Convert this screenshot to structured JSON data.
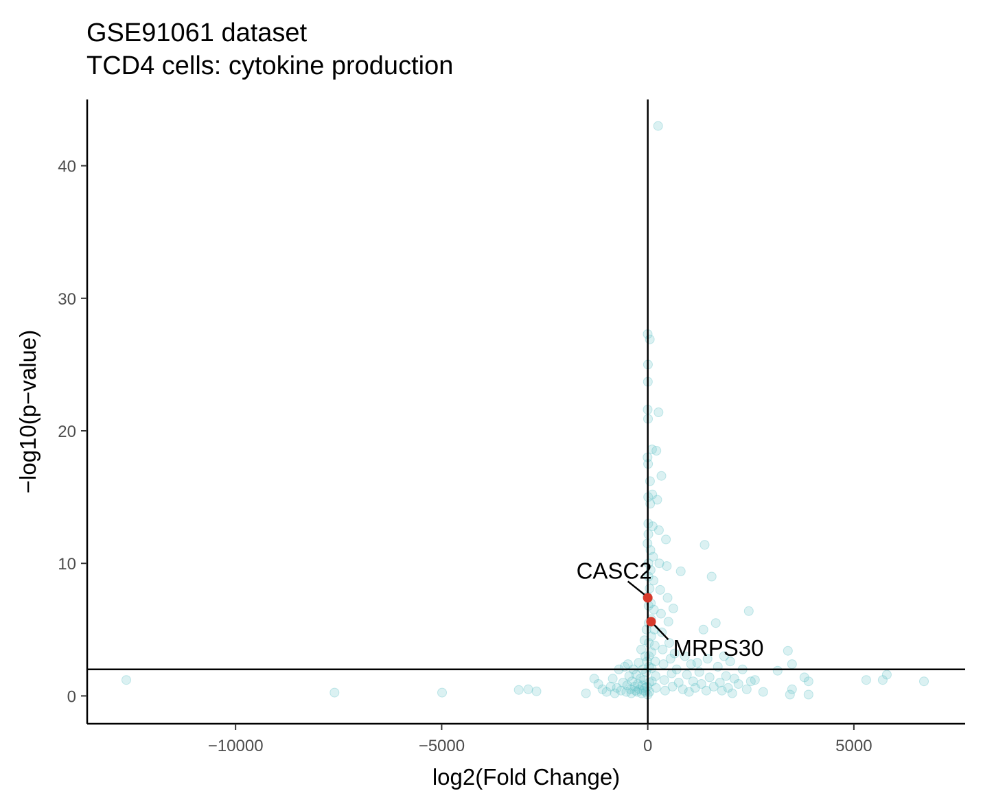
{
  "chart_data": {
    "type": "scatter",
    "title": "GSE91061 dataset",
    "subtitle": "TCD4 cells: cytokine production",
    "xlabel": "log2(Fold Change)",
    "ylabel": "−log10(p−value)",
    "xlim": [
      -13600,
      7700
    ],
    "ylim": [
      -2.1,
      45
    ],
    "x_ticks": [
      -10000,
      -5000,
      0,
      5000
    ],
    "x_tick_labels": [
      "−10000",
      "−5000",
      "0",
      "5000"
    ],
    "y_ticks": [
      0,
      10,
      20,
      30,
      40
    ],
    "y_tick_labels": [
      "0",
      "10",
      "20",
      "30",
      "40"
    ],
    "hline": 2,
    "vline": 0,
    "grid": false,
    "colors": {
      "points": "#5bbfc5",
      "highlight": "#d73a2c",
      "axis": "#000000"
    },
    "series": [
      {
        "points": [
          [
            -12650,
            1.2
          ],
          [
            -7600,
            0.25
          ],
          [
            -4990,
            0.25
          ],
          [
            -3130,
            0.45
          ],
          [
            -2900,
            0.5
          ],
          [
            -2700,
            0.35
          ],
          [
            -1500,
            0.2
          ],
          [
            -1300,
            1.3
          ],
          [
            -1200,
            0.9
          ],
          [
            -1100,
            0.5
          ],
          [
            -1000,
            0.3
          ],
          [
            -900,
            0.7
          ],
          [
            -850,
            1.3
          ],
          [
            -800,
            0.2
          ],
          [
            -750,
            0.6
          ],
          [
            -700,
            2.0
          ],
          [
            -650,
            0.4
          ],
          [
            -600,
            1.0
          ],
          [
            -560,
            2.2
          ],
          [
            -520,
            0.3
          ],
          [
            -500,
            0.8
          ],
          [
            -480,
            2.4
          ],
          [
            -450,
            1.5
          ],
          [
            -420,
            0.5
          ],
          [
            -400,
            0.2
          ],
          [
            -380,
            1.1
          ],
          [
            -350,
            2.0
          ],
          [
            -320,
            0.7
          ],
          [
            -300,
            0.4
          ],
          [
            -280,
            1.6
          ],
          [
            -260,
            0.3
          ],
          [
            -240,
            0.9
          ],
          [
            -220,
            2.5
          ],
          [
            -200,
            0.5
          ],
          [
            -180,
            1.3
          ],
          [
            -160,
            3.5
          ],
          [
            -150,
            0.2
          ],
          [
            -130,
            0.8
          ],
          [
            -120,
            2.0
          ],
          [
            -100,
            0.4
          ],
          [
            -90,
            1.2
          ],
          [
            -80,
            4.2
          ],
          [
            -70,
            0.6
          ],
          [
            -60,
            3.0
          ],
          [
            -50,
            0.3
          ],
          [
            -40,
            1.8
          ],
          [
            -30,
            5.0
          ],
          [
            -20,
            0.7
          ],
          [
            -15,
            2.6
          ],
          [
            -10,
            7.5
          ],
          [
            -8,
            11.5
          ],
          [
            -5,
            18.0
          ],
          [
            -3,
            21.6
          ],
          [
            -2,
            27.3
          ],
          [
            0,
            0.1
          ],
          [
            2,
            23.7
          ],
          [
            4,
            25.0
          ],
          [
            6,
            20.9
          ],
          [
            8,
            17.5
          ],
          [
            10,
            15.0
          ],
          [
            12,
            13.0
          ],
          [
            14,
            12.2
          ],
          [
            16,
            10.0
          ],
          [
            18,
            9.0
          ],
          [
            20,
            6.8
          ],
          [
            22,
            5.5
          ],
          [
            25,
            4.0
          ],
          [
            28,
            3.0
          ],
          [
            30,
            2.2
          ],
          [
            35,
            1.0
          ],
          [
            40,
            0.3
          ],
          [
            45,
            8.1
          ],
          [
            50,
            26.9
          ],
          [
            55,
            16.2
          ],
          [
            60,
            14.5
          ],
          [
            65,
            11.0
          ],
          [
            70,
            9.5
          ],
          [
            75,
            7.0
          ],
          [
            80,
            5.8
          ],
          [
            85,
            4.5
          ],
          [
            90,
            3.3
          ],
          [
            95,
            2.1
          ],
          [
            100,
            1.1
          ],
          [
            105,
            18.6
          ],
          [
            110,
            15.2
          ],
          [
            120,
            12.8
          ],
          [
            130,
            10.5
          ],
          [
            140,
            8.7
          ],
          [
            150,
            6.5
          ],
          [
            160,
            5.0
          ],
          [
            170,
            3.8
          ],
          [
            180,
            2.6
          ],
          [
            190,
            1.5
          ],
          [
            200,
            0.6
          ],
          [
            210,
            18.5
          ],
          [
            230,
            14.8
          ],
          [
            250,
            43.0
          ],
          [
            260,
            21.4
          ],
          [
            270,
            12.5
          ],
          [
            280,
            10.0
          ],
          [
            300,
            8.0
          ],
          [
            320,
            6.2
          ],
          [
            330,
            16.6
          ],
          [
            340,
            4.8
          ],
          [
            360,
            3.5
          ],
          [
            380,
            2.4
          ],
          [
            400,
            1.2
          ],
          [
            420,
            0.4
          ],
          [
            440,
            11.8
          ],
          [
            460,
            9.8
          ],
          [
            480,
            7.4
          ],
          [
            500,
            5.6
          ],
          [
            520,
            4.0
          ],
          [
            550,
            2.8
          ],
          [
            580,
            1.7
          ],
          [
            600,
            0.7
          ],
          [
            620,
            6.6
          ],
          [
            650,
            3.2
          ],
          [
            700,
            2.0
          ],
          [
            750,
            1.0
          ],
          [
            800,
            9.4
          ],
          [
            850,
            0.5
          ],
          [
            900,
            3.0
          ],
          [
            950,
            1.6
          ],
          [
            1000,
            0.3
          ],
          [
            1050,
            2.4
          ],
          [
            1100,
            1.1
          ],
          [
            1150,
            0.6
          ],
          [
            1200,
            2.5
          ],
          [
            1250,
            1.8
          ],
          [
            1300,
            0.9
          ],
          [
            1350,
            5.0
          ],
          [
            1380,
            11.4
          ],
          [
            1420,
            0.4
          ],
          [
            1450,
            2.8
          ],
          [
            1500,
            1.4
          ],
          [
            1550,
            9.0
          ],
          [
            1600,
            0.7
          ],
          [
            1650,
            5.5
          ],
          [
            1700,
            2.2
          ],
          [
            1750,
            1.0
          ],
          [
            1800,
            0.4
          ],
          [
            1850,
            3.0
          ],
          [
            1900,
            1.5
          ],
          [
            1950,
            0.6
          ],
          [
            2000,
            2.6
          ],
          [
            2050,
            0.2
          ],
          [
            2100,
            1.3
          ],
          [
            2200,
            0.9
          ],
          [
            2300,
            2.0
          ],
          [
            2400,
            0.5
          ],
          [
            2450,
            6.4
          ],
          [
            2500,
            1.1
          ],
          [
            2600,
            1.2
          ],
          [
            2800,
            0.3
          ],
          [
            3150,
            1.9
          ],
          [
            3400,
            3.4
          ],
          [
            3450,
            0.1
          ],
          [
            3500,
            2.4
          ],
          [
            3500,
            0.5
          ],
          [
            3800,
            1.4
          ],
          [
            3900,
            1.1
          ],
          [
            3900,
            0.1
          ],
          [
            5300,
            1.2
          ],
          [
            5700,
            1.2
          ],
          [
            5800,
            1.6
          ],
          [
            6700,
            1.1
          ]
        ]
      }
    ],
    "highlights": [
      {
        "label": "CASC2",
        "x": 0,
        "y": 7.4
      },
      {
        "label": "MRPS30",
        "x": 80,
        "y": 5.6
      }
    ]
  }
}
